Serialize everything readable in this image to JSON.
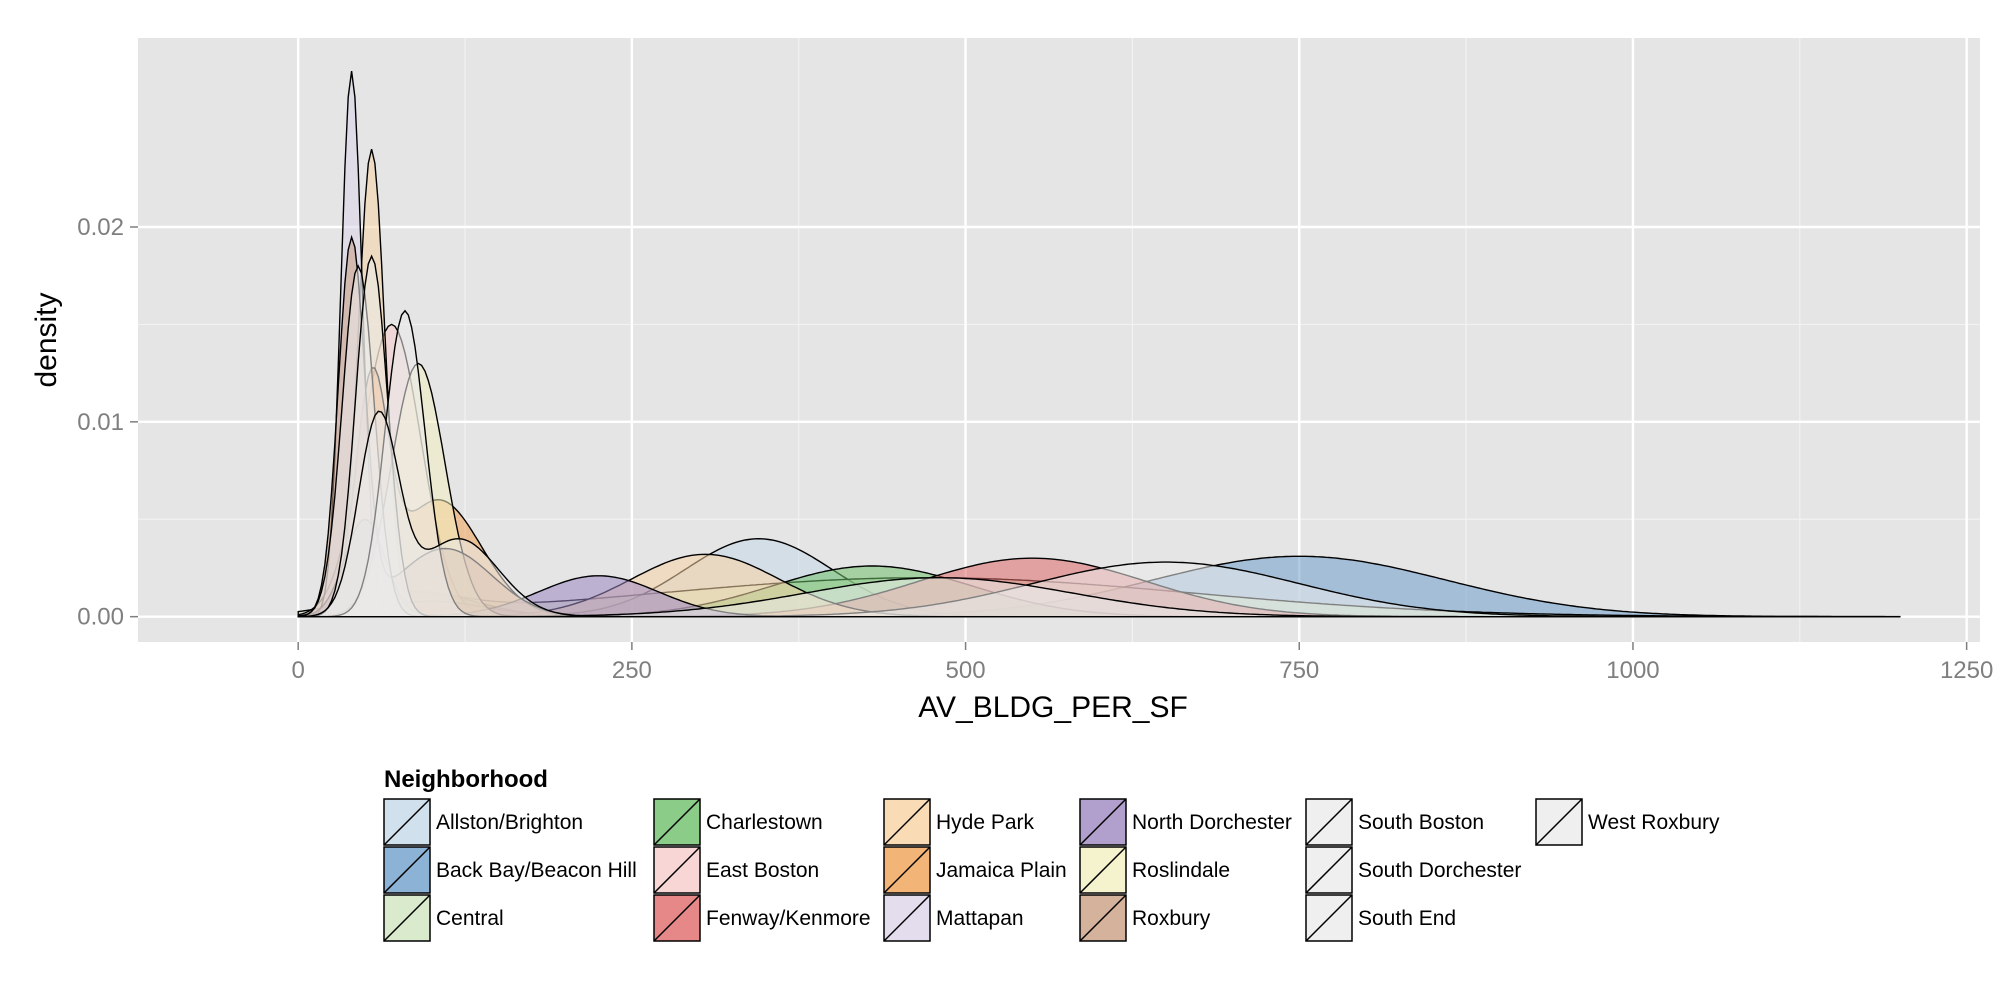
{
  "chart_data": {
    "type": "area",
    "title": "",
    "xlabel": "AV_BLDG_PER_SF",
    "ylabel": "density",
    "xlim": [
      -120,
      1260
    ],
    "ylim": [
      -0.0013,
      0.0297
    ],
    "x_ticks": [
      0,
      250,
      500,
      750,
      1000,
      1250
    ],
    "x_tick_labels": [
      "0",
      "250",
      "500",
      "750",
      "1000",
      "1250"
    ],
    "y_ticks": [
      0.0,
      0.01,
      0.02
    ],
    "y_tick_labels": [
      "0.00",
      "0.01",
      "0.02"
    ],
    "grid": true,
    "legend": {
      "title": "Neighborhood",
      "position": "bottom"
    },
    "series": [
      {
        "name": "Allston/Brighton",
        "color": "#c6d8e8",
        "peaks": [
          {
            "x": 345,
            "y": 0.004,
            "sd": 55
          },
          {
            "x": 90,
            "y": 0.0012,
            "sd": 40
          }
        ]
      },
      {
        "name": "Back Bay/Beacon Hill",
        "color": "#6f9fcc",
        "peaks": [
          {
            "x": 750,
            "y": 0.0031,
            "sd": 110
          }
        ]
      },
      {
        "name": "Central",
        "color": "#cfe5c0",
        "peaks": [
          {
            "x": 470,
            "y": 0.002,
            "sd": 200
          },
          {
            "x": 80,
            "y": 0.001,
            "sd": 40
          }
        ]
      },
      {
        "name": "Charlestown",
        "color": "#6fbf6c",
        "peaks": [
          {
            "x": 430,
            "y": 0.0026,
            "sd": 75
          },
          {
            "x": 95,
            "y": 0.0012,
            "sd": 40
          }
        ]
      },
      {
        "name": "East Boston",
        "color": "#f8cccc",
        "peaks": [
          {
            "x": 70,
            "y": 0.015,
            "sd": 22
          }
        ]
      },
      {
        "name": "Fenway/Kenmore",
        "color": "#e06a6a",
        "peaks": [
          {
            "x": 550,
            "y": 0.003,
            "sd": 85
          },
          {
            "x": 100,
            "y": 0.0008,
            "sd": 40
          }
        ]
      },
      {
        "name": "Hyde Park",
        "color": "#f7d3a4",
        "peaks": [
          {
            "x": 305,
            "y": 0.0032,
            "sd": 55
          },
          {
            "x": 55,
            "y": 0.024,
            "sd": 10
          }
        ]
      },
      {
        "name": "Jamaica Plain",
        "color": "#f0a355",
        "peaks": [
          {
            "x": 105,
            "y": 0.006,
            "sd": 32
          },
          {
            "x": 55,
            "y": 0.011,
            "sd": 12
          }
        ]
      },
      {
        "name": "Mattapan",
        "color": "#dcd5ea",
        "peaks": [
          {
            "x": 40,
            "y": 0.028,
            "sd": 8
          }
        ]
      },
      {
        "name": "North Dorchester",
        "color": "#9d87c2",
        "peaks": [
          {
            "x": 225,
            "y": 0.0021,
            "sd": 45
          },
          {
            "x": 50,
            "y": 0.005,
            "sd": 15
          }
        ]
      },
      {
        "name": "Roslindale",
        "color": "#f3f0c2",
        "peaks": [
          {
            "x": 90,
            "y": 0.013,
            "sd": 20
          }
        ]
      },
      {
        "name": "Roxbury",
        "color": "#c99f83",
        "peaks": [
          {
            "x": 40,
            "y": 0.019,
            "sd": 10
          },
          {
            "x": 110,
            "y": 0.0035,
            "sd": 35
          }
        ]
      },
      {
        "name": "South Boston",
        "color": "#ebebeb",
        "peaks": [
          {
            "x": 650,
            "y": 0.0028,
            "sd": 100
          },
          {
            "x": 45,
            "y": 0.018,
            "sd": 12
          }
        ]
      },
      {
        "name": "South Dorchester",
        "color": "#ebebeb",
        "peaks": [
          {
            "x": 55,
            "y": 0.0185,
            "sd": 12
          }
        ]
      },
      {
        "name": "South End",
        "color": "#ebebeb",
        "peaks": [
          {
            "x": 480,
            "y": 0.002,
            "sd": 100
          },
          {
            "x": 80,
            "y": 0.0157,
            "sd": 15
          }
        ]
      },
      {
        "name": "West Roxbury",
        "color": "#ebebeb",
        "peaks": [
          {
            "x": 120,
            "y": 0.004,
            "sd": 30
          },
          {
            "x": 60,
            "y": 0.01,
            "sd": 15
          }
        ]
      }
    ]
  }
}
